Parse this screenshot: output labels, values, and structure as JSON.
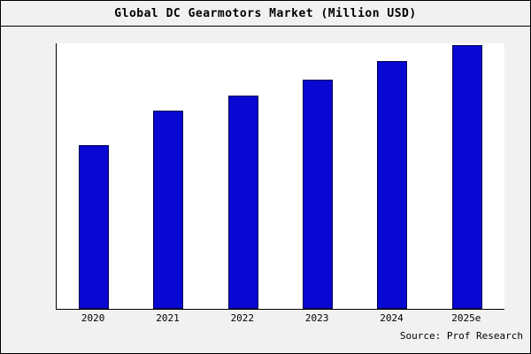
{
  "title": "Global DC Gearmotors Market (Million USD)",
  "source": "Source: Prof Research",
  "chart_data": {
    "type": "bar",
    "title": "Global DC Gearmotors Market (Million USD)",
    "categories": [
      "2020",
      "2021",
      "2022",
      "2023",
      "2024",
      "2025e"
    ],
    "values": [
      62,
      75,
      81,
      87,
      94,
      100
    ],
    "xlabel": "",
    "ylabel": "",
    "ylim": [
      0,
      100
    ],
    "grid": false,
    "legend": "none",
    "note": "no numeric y-axis shown in chart; values are relative estimates with tallest bar (2025e) = 100"
  },
  "colors": {
    "bar_fill": "#0808d2",
    "bar_border": "#000050",
    "page_background": "#f1f1f1",
    "plot_background": "#ffffff",
    "text": "#000000"
  }
}
